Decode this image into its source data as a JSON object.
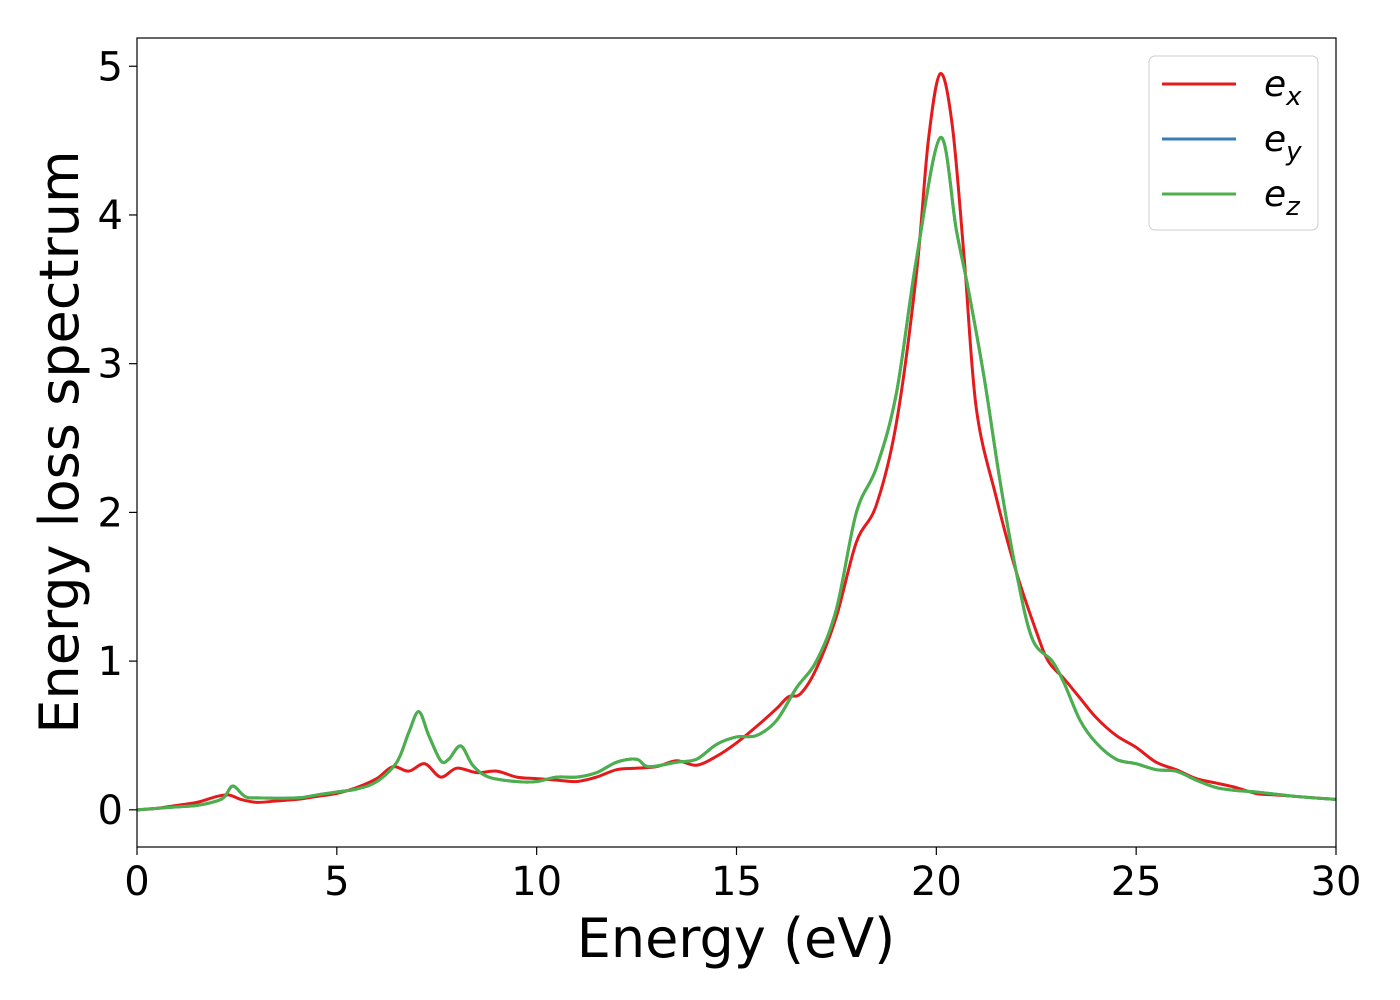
{
  "chart_data": {
    "type": "line",
    "title": "",
    "xlabel": "Energy (eV)",
    "ylabel": "Energy loss spectrum",
    "xlim": [
      0,
      30
    ],
    "ylim": [
      -0.25,
      5.19
    ],
    "xticks": [
      0,
      5,
      10,
      15,
      20,
      25,
      30
    ],
    "yticks": [
      0,
      1,
      2,
      3,
      4,
      5
    ],
    "grid": false,
    "legend_position": "top-right",
    "series": [
      {
        "name": "e",
        "sub": "x",
        "color": "#e41a1c",
        "x": [
          0,
          0.5,
          1,
          1.5,
          2,
          2.3,
          2.6,
          3,
          3.5,
          4,
          4.5,
          5,
          5.5,
          6,
          6.4,
          6.8,
          7.2,
          7.6,
          8,
          8.5,
          9,
          9.5,
          10,
          10.5,
          11,
          11.5,
          12,
          12.5,
          13,
          13.5,
          14,
          14.5,
          15,
          15.5,
          16,
          16.3,
          16.6,
          17,
          17.5,
          18,
          18.5,
          19,
          19.5,
          19.8,
          20.1,
          20.4,
          20.7,
          21,
          21.5,
          22,
          22.5,
          22.8,
          23.2,
          23.6,
          24,
          24.5,
          25,
          25.5,
          26,
          26.5,
          27,
          27.5,
          28,
          28.5,
          29,
          30
        ],
        "y": [
          0,
          0.01,
          0.03,
          0.05,
          0.09,
          0.1,
          0.07,
          0.05,
          0.06,
          0.07,
          0.09,
          0.11,
          0.15,
          0.21,
          0.29,
          0.26,
          0.31,
          0.22,
          0.28,
          0.25,
          0.26,
          0.22,
          0.21,
          0.2,
          0.19,
          0.22,
          0.27,
          0.28,
          0.29,
          0.33,
          0.3,
          0.36,
          0.45,
          0.56,
          0.68,
          0.76,
          0.78,
          0.95,
          1.3,
          1.8,
          2.05,
          2.6,
          3.6,
          4.5,
          4.95,
          4.6,
          3.7,
          2.7,
          2.1,
          1.6,
          1.2,
          1.0,
          0.88,
          0.75,
          0.62,
          0.5,
          0.42,
          0.32,
          0.27,
          0.21,
          0.18,
          0.15,
          0.11,
          0.1,
          0.09,
          0.07
        ]
      },
      {
        "name": "e",
        "sub": "y",
        "color": "#377eb8",
        "x": [
          0,
          0.5,
          1,
          1.5,
          2,
          2.2,
          2.4,
          2.7,
          3,
          4,
          4.5,
          5,
          5.5,
          6,
          6.5,
          6.8,
          7.05,
          7.3,
          7.6,
          7.8,
          8.1,
          8.4,
          8.8,
          9.5,
          10,
          10.5,
          11,
          11.5,
          12,
          12.5,
          12.8,
          13.5,
          14,
          14.5,
          15,
          15.5,
          16,
          16.5,
          17,
          17.5,
          18,
          18.5,
          19,
          19.5,
          20.1,
          20.5,
          20.8,
          21.2,
          21.6,
          22,
          22.4,
          22.9,
          23.2,
          23.6,
          24,
          24.5,
          25,
          25.5,
          26,
          26.5,
          27,
          27.5,
          28,
          29,
          30
        ],
        "y": [
          0,
          0.01,
          0.02,
          0.03,
          0.06,
          0.09,
          0.16,
          0.09,
          0.08,
          0.08,
          0.1,
          0.12,
          0.14,
          0.19,
          0.32,
          0.52,
          0.66,
          0.5,
          0.33,
          0.34,
          0.43,
          0.3,
          0.22,
          0.19,
          0.19,
          0.22,
          0.22,
          0.25,
          0.32,
          0.34,
          0.29,
          0.32,
          0.34,
          0.44,
          0.49,
          0.5,
          0.6,
          0.82,
          1.0,
          1.35,
          2.0,
          2.3,
          2.8,
          3.7,
          4.52,
          3.9,
          3.5,
          2.9,
          2.2,
          1.6,
          1.15,
          1.0,
          0.85,
          0.6,
          0.45,
          0.34,
          0.31,
          0.27,
          0.26,
          0.2,
          0.15,
          0.13,
          0.12,
          0.09,
          0.07
        ]
      },
      {
        "name": "e",
        "sub": "z",
        "color": "#4daf4a",
        "x": [
          0,
          0.5,
          1,
          1.5,
          2,
          2.2,
          2.4,
          2.7,
          3,
          4,
          4.5,
          5,
          5.5,
          6,
          6.5,
          6.8,
          7.05,
          7.3,
          7.6,
          7.8,
          8.1,
          8.4,
          8.8,
          9.5,
          10,
          10.5,
          11,
          11.5,
          12,
          12.5,
          12.8,
          13.5,
          14,
          14.5,
          15,
          15.5,
          16,
          16.5,
          17,
          17.5,
          18,
          18.5,
          19,
          19.5,
          20.1,
          20.5,
          20.8,
          21.2,
          21.6,
          22,
          22.4,
          22.9,
          23.2,
          23.6,
          24,
          24.5,
          25,
          25.5,
          26,
          26.5,
          27,
          27.5,
          28,
          29,
          30
        ],
        "y": [
          0,
          0.01,
          0.02,
          0.03,
          0.06,
          0.09,
          0.16,
          0.09,
          0.08,
          0.08,
          0.1,
          0.12,
          0.14,
          0.19,
          0.32,
          0.52,
          0.66,
          0.5,
          0.33,
          0.34,
          0.43,
          0.3,
          0.22,
          0.19,
          0.19,
          0.22,
          0.22,
          0.25,
          0.32,
          0.34,
          0.29,
          0.32,
          0.34,
          0.44,
          0.49,
          0.5,
          0.6,
          0.82,
          1.0,
          1.35,
          2.0,
          2.3,
          2.8,
          3.7,
          4.52,
          3.9,
          3.5,
          2.9,
          2.2,
          1.6,
          1.15,
          1.0,
          0.85,
          0.6,
          0.45,
          0.34,
          0.31,
          0.27,
          0.26,
          0.2,
          0.15,
          0.13,
          0.12,
          0.09,
          0.07
        ]
      }
    ]
  }
}
